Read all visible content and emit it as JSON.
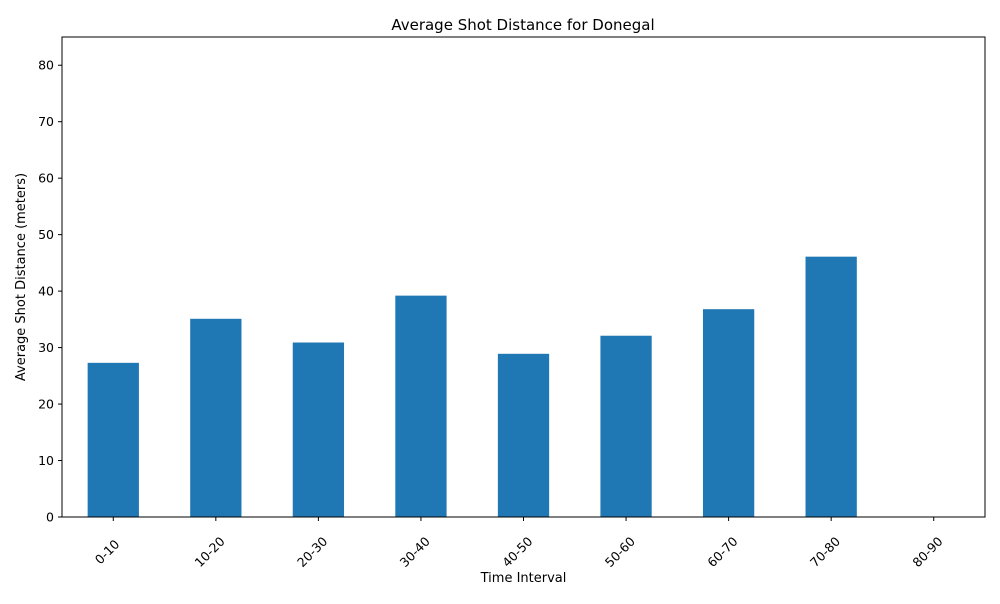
{
  "chart_data": {
    "type": "bar",
    "title": "Average Shot Distance for Donegal",
    "xlabel": "Time Interval",
    "ylabel": "Average Shot Distance (meters)",
    "categories": [
      "0-10",
      "10-20",
      "20-30",
      "30-40",
      "40-50",
      "50-60",
      "60-70",
      "70-80",
      "80-90"
    ],
    "values": [
      27.3,
      35.1,
      30.9,
      39.2,
      28.9,
      32.1,
      36.8,
      46.1,
      null
    ],
    "ylim": [
      0,
      85
    ],
    "yticks": [
      0,
      10,
      20,
      30,
      40,
      50,
      60,
      70,
      80
    ],
    "bar_color": "#1f77b4",
    "grid": false,
    "legend": "none"
  }
}
